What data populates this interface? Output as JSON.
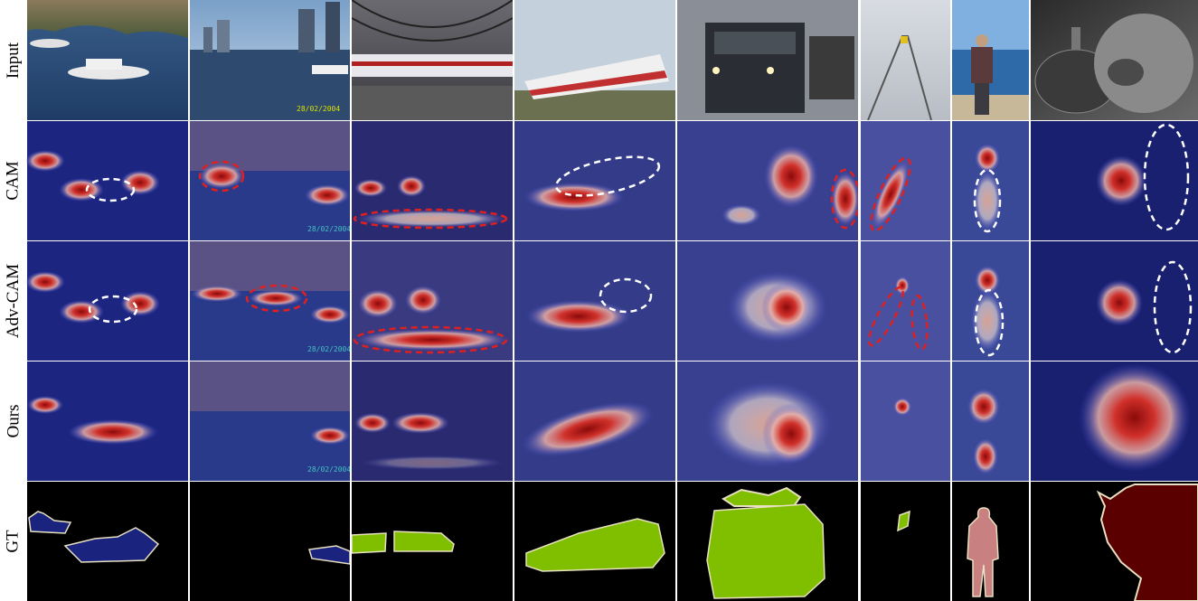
{
  "rows": [
    {
      "label": "Input"
    },
    {
      "label": "CAM"
    },
    {
      "label": "Adv-CAM"
    },
    {
      "label": "Ours"
    },
    {
      "label": "GT"
    }
  ],
  "columns": [
    {
      "scene": "yachts"
    },
    {
      "scene": "city-river"
    },
    {
      "scene": "train-station"
    },
    {
      "scene": "passenger-train"
    },
    {
      "scene": "locomotive"
    },
    {
      "scene": "snow-rails"
    },
    {
      "scene": "person-beach"
    },
    {
      "scene": "cat-dark"
    }
  ],
  "overlays": {
    "date_stamp": "28/02/2004"
  },
  "colors": {
    "heat_hot": "#c81a1a",
    "heat_cool": "#1c2aa8",
    "gt_boat": "#1a237e",
    "gt_train": "#7fbf00",
    "gt_person": "#c98080",
    "gt_cat": "#5a0000",
    "gt_outline": "#e8e0c0",
    "ellipse_red": "#e02020",
    "ellipse_white": "#ffffff"
  }
}
